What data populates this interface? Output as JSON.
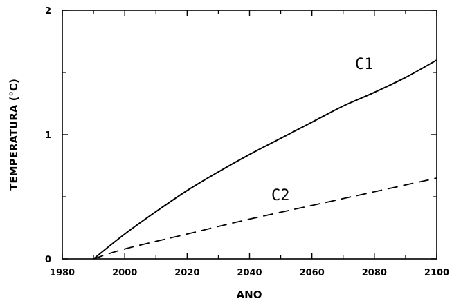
{
  "chart_data": {
    "type": "line",
    "title": "",
    "xlabel": "ANO",
    "ylabel": "TEMPERATURA (°C)",
    "xlim": [
      1980,
      2100
    ],
    "ylim": [
      0,
      2
    ],
    "xticks": [
      1980,
      2000,
      2020,
      2040,
      2060,
      2080,
      2100
    ],
    "yticks": [
      0,
      1,
      2
    ],
    "grid": false,
    "series": [
      {
        "name": "C1",
        "style": "solid",
        "x": [
          1990,
          2000,
          2010,
          2020,
          2030,
          2040,
          2050,
          2060,
          2070,
          2080,
          2090,
          2100
        ],
        "y": [
          0,
          0.2,
          0.38,
          0.55,
          0.7,
          0.84,
          0.97,
          1.1,
          1.23,
          1.34,
          1.46,
          1.6
        ]
      },
      {
        "name": "C2",
        "style": "dashed",
        "x": [
          1990,
          2000,
          2020,
          2040,
          2060,
          2080,
          2100
        ],
        "y": [
          0,
          0.08,
          0.2,
          0.32,
          0.43,
          0.54,
          0.65
        ]
      }
    ]
  }
}
